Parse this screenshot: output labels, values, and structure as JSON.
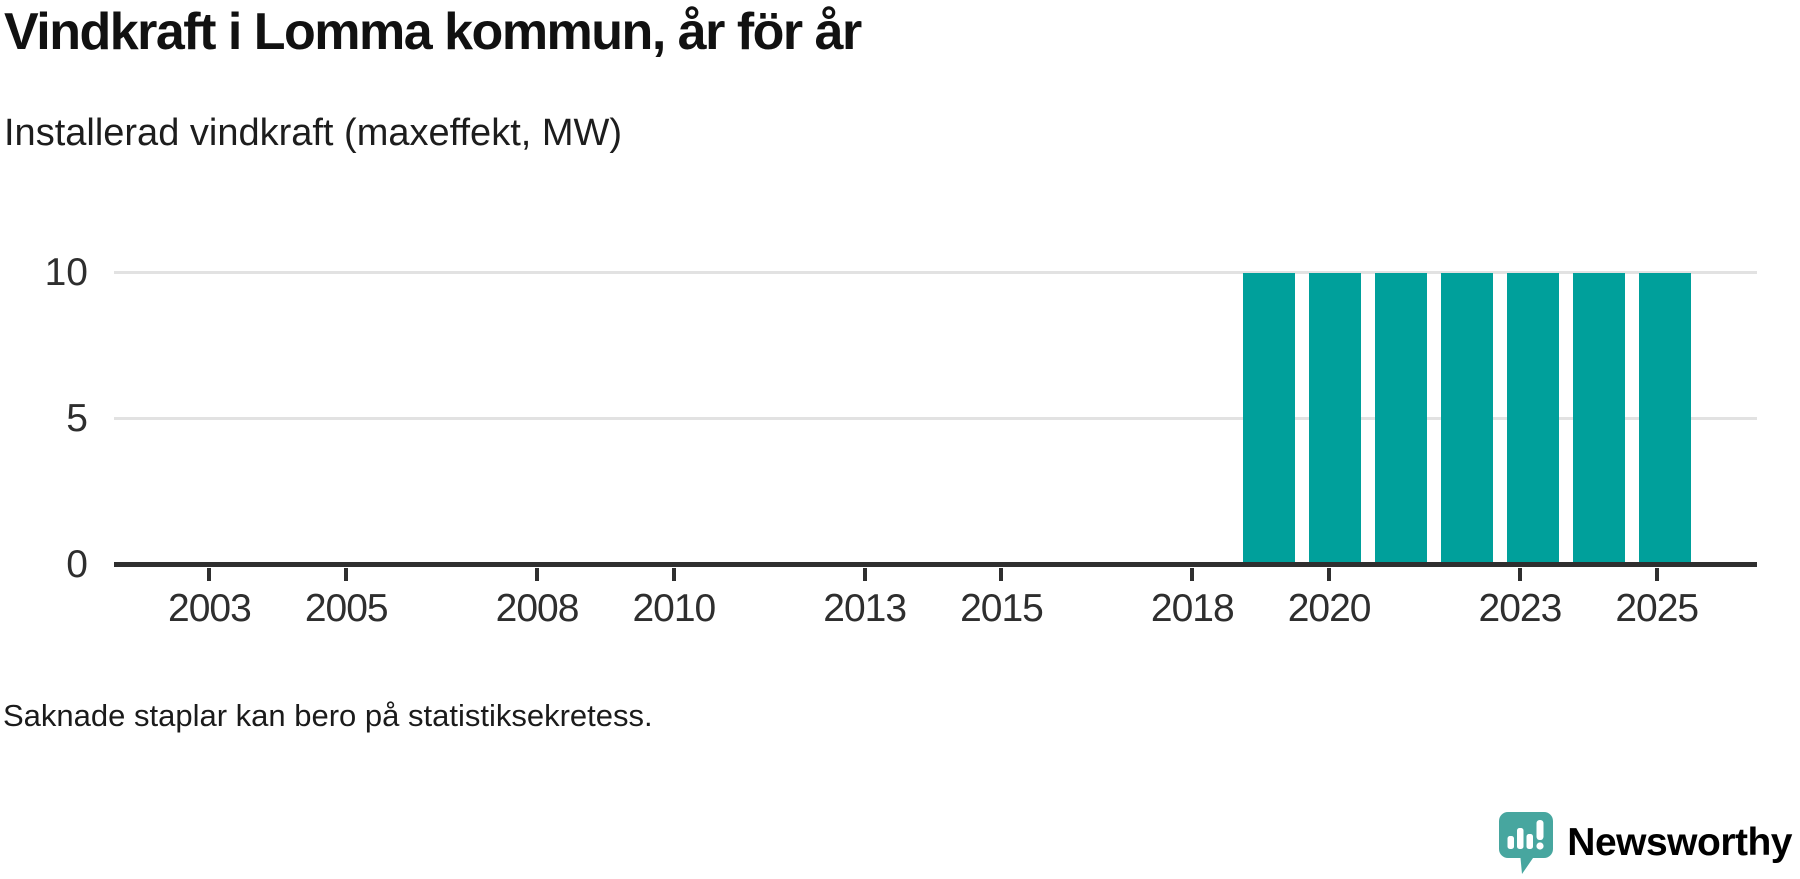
{
  "title": "Vindkraft i Lomma kommun, år för år",
  "subtitle": "Installerad vindkraft (maxeffekt, MW)",
  "footnote": "Saknade staplar kan bero på statistiksekretess.",
  "branding": {
    "name": "Newsworthy",
    "icon": "newsworthy-speech-bubble-chart-icon",
    "icon_color": "#47a69f",
    "text_color": "#3aa39c"
  },
  "chart_data": {
    "type": "bar",
    "x": [
      2002,
      2003,
      2004,
      2005,
      2006,
      2007,
      2008,
      2009,
      2010,
      2011,
      2012,
      2013,
      2014,
      2015,
      2016,
      2017,
      2018,
      2019,
      2020,
      2021,
      2022,
      2023,
      2024,
      2025
    ],
    "values": [
      null,
      null,
      null,
      null,
      null,
      null,
      null,
      null,
      null,
      null,
      null,
      null,
      null,
      null,
      null,
      null,
      null,
      10,
      10,
      10,
      10,
      10,
      10,
      10
    ],
    "x_tick_labels": [
      2003,
      2005,
      2008,
      2010,
      2013,
      2015,
      2018,
      2020,
      2023,
      2025
    ],
    "y_ticks": [
      0,
      5,
      10
    ],
    "ylim": [
      0,
      11.5
    ],
    "title": "Vindkraft i Lomma kommun, år för år",
    "ylabel": "Installerad vindkraft (maxeffekt, MW)",
    "grid": "horizontal",
    "legend": "none",
    "bar_color": "#00a09b",
    "gridline_color": "#e2e2e2",
    "axis_color": "#2f2f2f"
  }
}
